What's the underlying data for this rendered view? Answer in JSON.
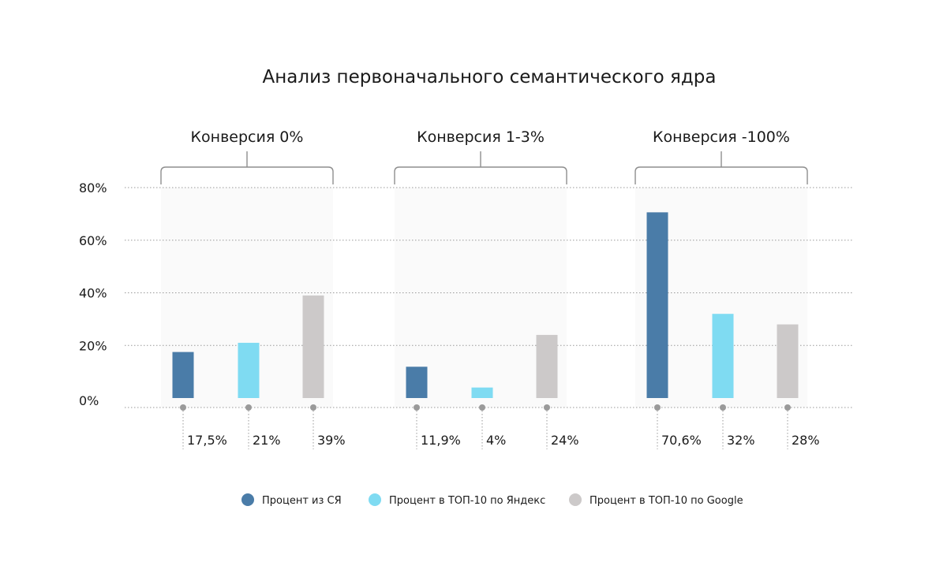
{
  "chart_data": {
    "type": "bar",
    "title": "Анализ первоначального семантического ядра",
    "xlabel": "",
    "ylabel": "",
    "ylim": [
      0,
      80
    ],
    "y_ticks": [
      "0%",
      "20%",
      "40%",
      "60%",
      "80%"
    ],
    "y_tick_values": [
      0,
      20,
      40,
      60,
      80
    ],
    "grid": true,
    "legend_position": "bottom",
    "categories": [
      "Конверсия 0%",
      "Конверсия 1-3%",
      "Конверсия -100%"
    ],
    "series": [
      {
        "name": "Процент из СЯ",
        "color": "#4a7ca8",
        "values": [
          17.5,
          11.9,
          70.6
        ],
        "labels": [
          "17,5%",
          "11,9%",
          "70,6%"
        ]
      },
      {
        "name": "Процент в ТОП-10 по Яндекс",
        "color": "#7fdbf2",
        "values": [
          21,
          4,
          32
        ],
        "labels": [
          "21%",
          "4%",
          "32%"
        ]
      },
      {
        "name": "Процент в ТОП-10 по Google",
        "color": "#ccc9c9",
        "values": [
          39,
          24,
          28
        ],
        "labels": [
          "39%",
          "24%",
          "28%"
        ]
      }
    ]
  }
}
